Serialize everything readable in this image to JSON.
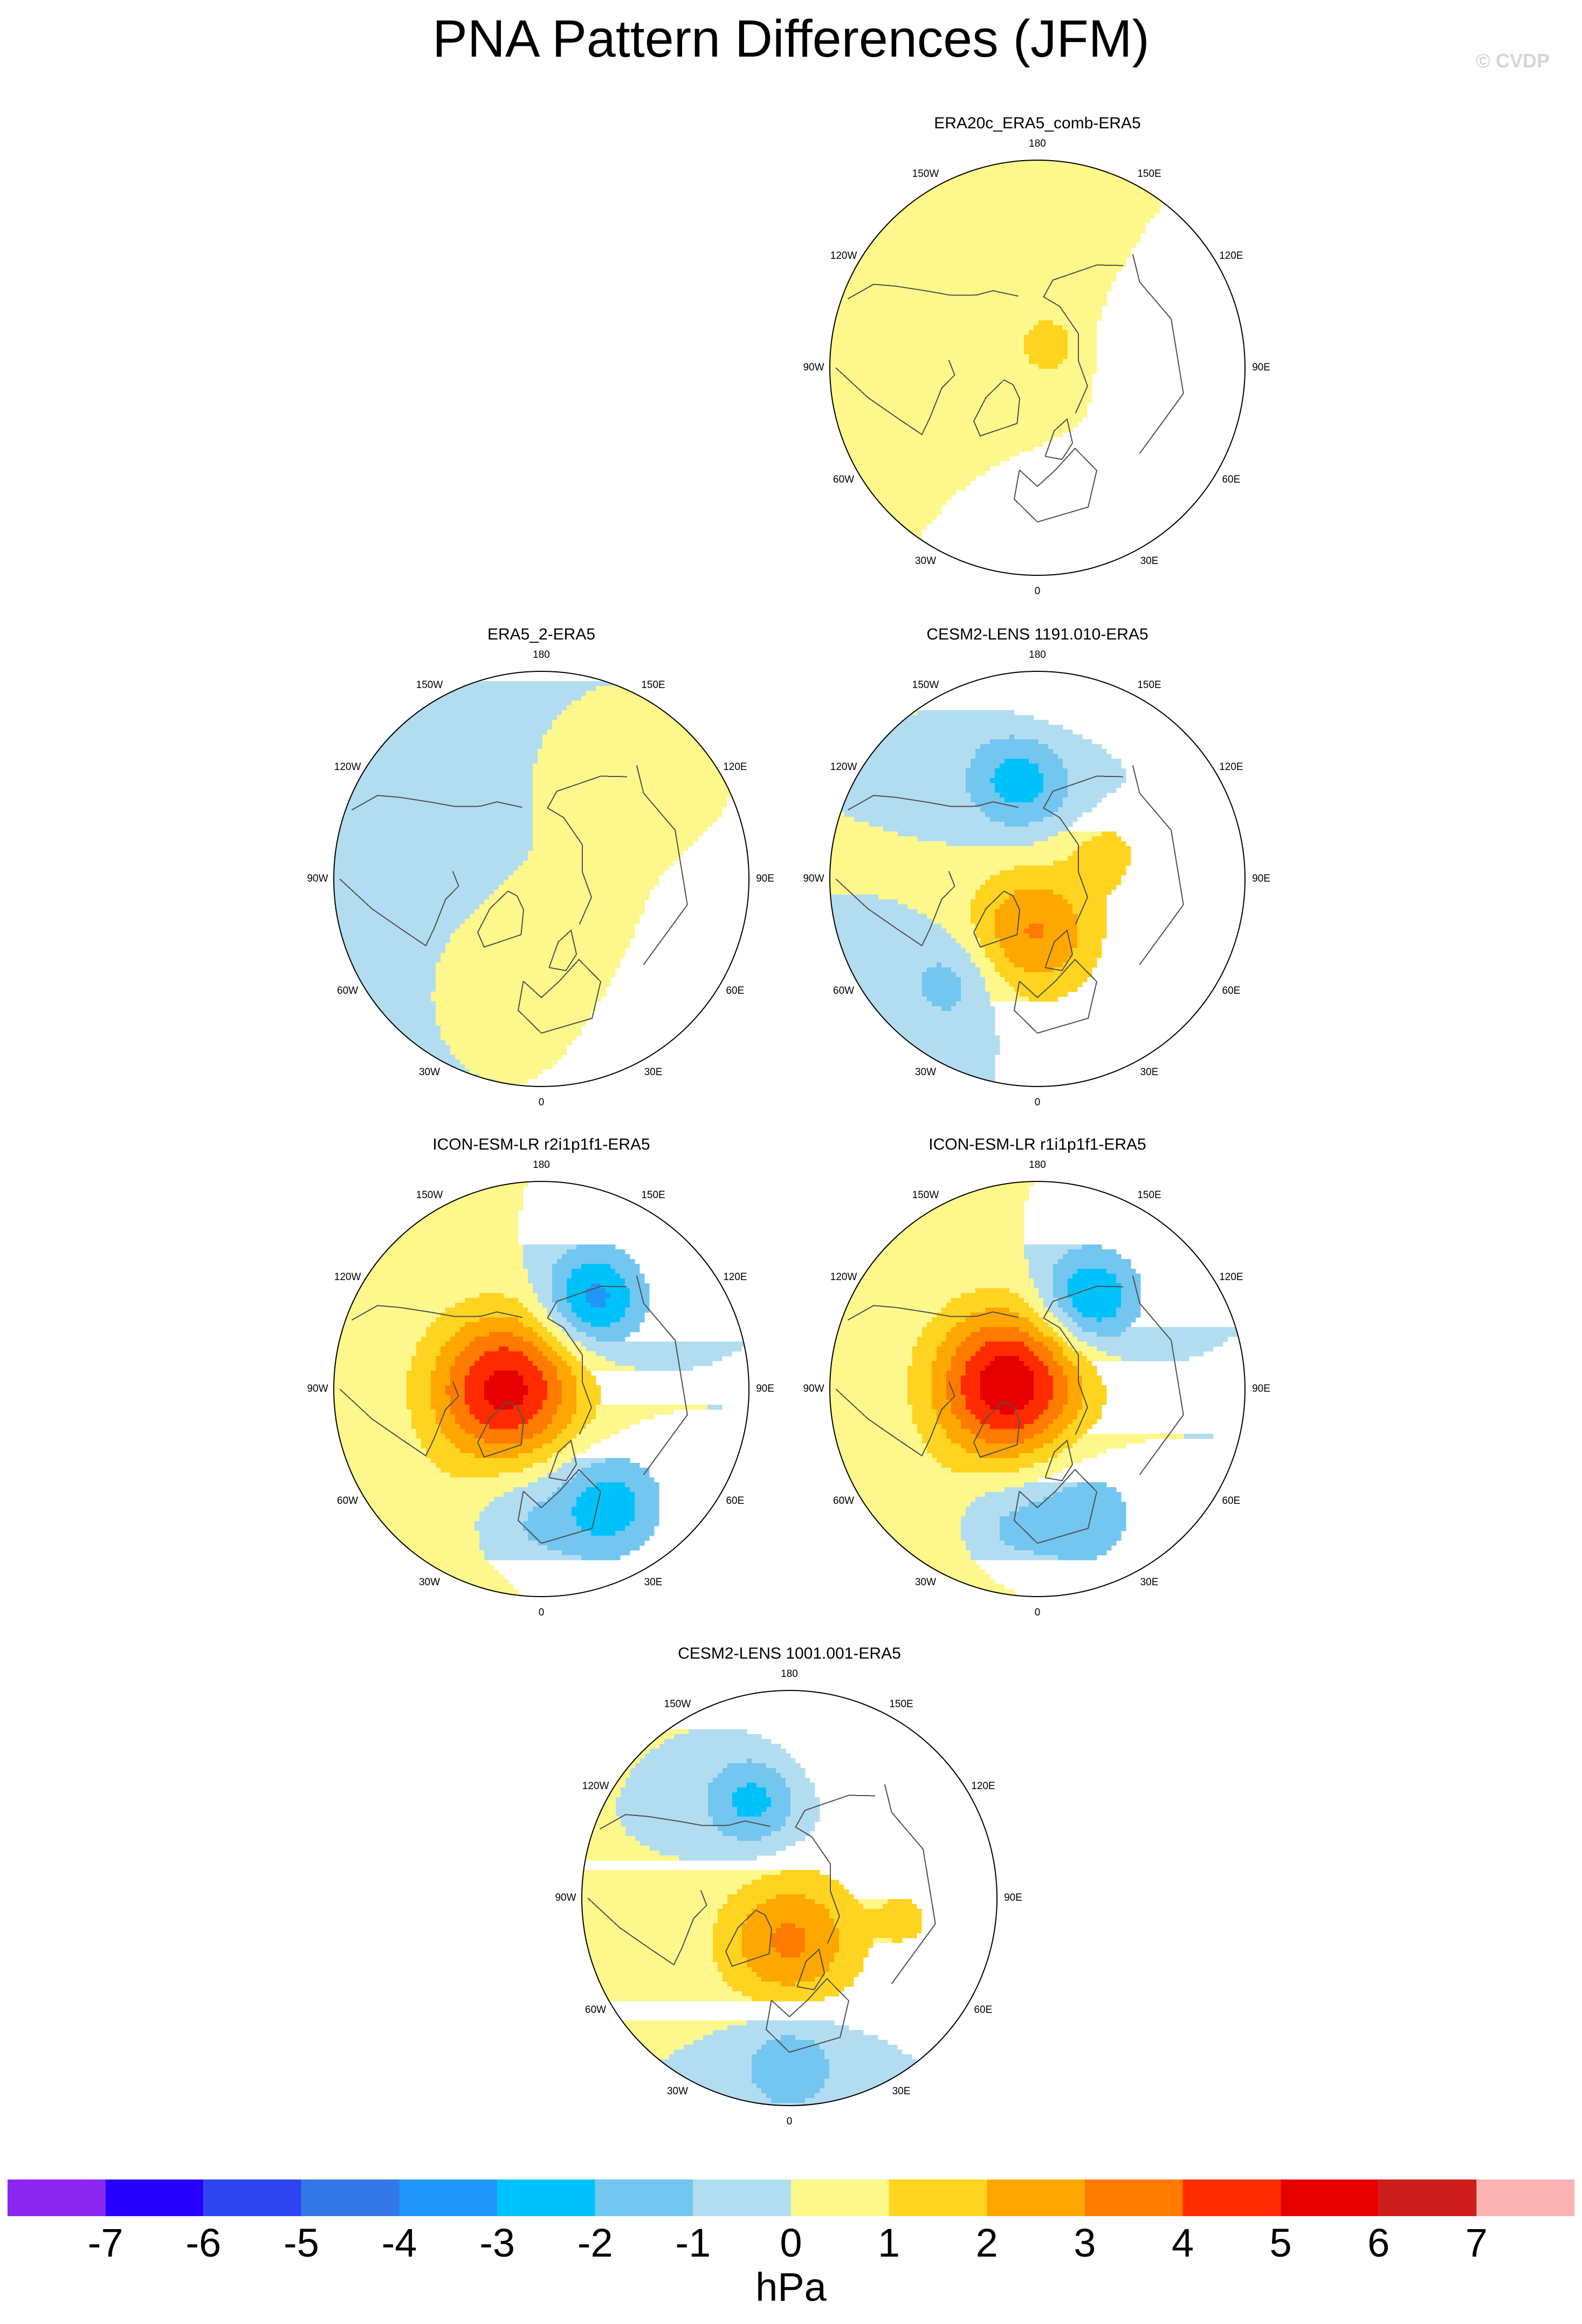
{
  "figure": {
    "title": "PNA Pattern Differences (JFM)",
    "copyright": "© CVDP"
  },
  "lon_labels": [
    "180",
    "150E",
    "120E",
    "90E",
    "60E",
    "30E",
    "0",
    "30W",
    "60W",
    "90W",
    "120W",
    "150W"
  ],
  "chart_data": [
    {
      "type": "filled-contour-polar-map",
      "title": "ERA20c_ERA5_comb-ERA5",
      "units": "hPa",
      "features": [
        {
          "sign": "positive",
          "peak_hPa": 1.6,
          "lon_deg": 150,
          "colat_deg": 8,
          "spread_deg": 6
        },
        {
          "sign": "negative",
          "peak_hPa": -0.5,
          "lon_deg": 0,
          "colat_deg": 55,
          "spread_deg": 25
        },
        {
          "sign": "negative",
          "peak_hPa": -0.5,
          "lon_deg": 110,
          "colat_deg": 42,
          "spread_deg": 22
        },
        {
          "sign": "positive",
          "peak_hPa": 0.5,
          "lon_deg": -100,
          "colat_deg": 30,
          "spread_deg": 40
        },
        {
          "sign": "positive",
          "peak_hPa": 0.5,
          "lon_deg": 180,
          "colat_deg": 42,
          "spread_deg": 20
        }
      ]
    },
    {
      "type": "filled-contour-polar-map",
      "title": "ERA5_2-ERA5",
      "units": "hPa",
      "features": [
        {
          "sign": "positive",
          "peak_hPa": 0.6,
          "lon_deg": 30,
          "colat_deg": 20,
          "spread_deg": 18
        },
        {
          "sign": "positive",
          "peak_hPa": 0.6,
          "lon_deg": -20,
          "colat_deg": 32,
          "spread_deg": 16
        },
        {
          "sign": "positive",
          "peak_hPa": 0.6,
          "lon_deg": 150,
          "colat_deg": 35,
          "spread_deg": 18
        },
        {
          "sign": "negative",
          "peak_hPa": -0.5,
          "lon_deg": -120,
          "colat_deg": 45,
          "spread_deg": 40
        },
        {
          "sign": "negative",
          "peak_hPa": -0.5,
          "lon_deg": 50,
          "colat_deg": 60,
          "spread_deg": 22
        }
      ]
    },
    {
      "type": "filled-contour-polar-map",
      "title": "CESM2-LENS 1191.010-ERA5",
      "units": "hPa",
      "features": [
        {
          "sign": "negative",
          "peak_hPa": -2.8,
          "lon_deg": -170,
          "colat_deg": 35,
          "spread_deg": 13
        },
        {
          "sign": "positive",
          "peak_hPa": 3.1,
          "lon_deg": -5,
          "colat_deg": 18,
          "spread_deg": 16
        },
        {
          "sign": "negative",
          "peak_hPa": -1.6,
          "lon_deg": -40,
          "colat_deg": 45,
          "spread_deg": 12
        },
        {
          "sign": "positive",
          "peak_hPa": 1.3,
          "lon_deg": 110,
          "colat_deg": 25,
          "spread_deg": 9
        },
        {
          "sign": "positive",
          "peak_hPa": 0.8,
          "lon_deg": 180,
          "colat_deg": 55,
          "spread_deg": 15
        }
      ]
    },
    {
      "type": "filled-contour-polar-map",
      "title": "ICON-ESM-LR r2i1p1f1-ERA5",
      "units": "hPa",
      "features": [
        {
          "sign": "positive",
          "peak_hPa": 5.4,
          "lon_deg": -90,
          "colat_deg": 12,
          "spread_deg": 18
        },
        {
          "sign": "negative",
          "peak_hPa": -3.5,
          "lon_deg": 150,
          "colat_deg": 35,
          "spread_deg": 12
        },
        {
          "sign": "negative",
          "peak_hPa": -2.6,
          "lon_deg": 30,
          "colat_deg": 45,
          "spread_deg": 13
        },
        {
          "sign": "negative",
          "peak_hPa": -1.3,
          "lon_deg": -10,
          "colat_deg": 45,
          "spread_deg": 14
        },
        {
          "sign": "positive",
          "peak_hPa": 0.8,
          "lon_deg": -30,
          "colat_deg": 65,
          "spread_deg": 20
        }
      ]
    },
    {
      "type": "filled-contour-polar-map",
      "title": "ICON-ESM-LR r1i1p1f1-ERA5",
      "units": "hPa",
      "features": [
        {
          "sign": "positive",
          "peak_hPa": 5.8,
          "lon_deg": -100,
          "colat_deg": 10,
          "spread_deg": 18
        },
        {
          "sign": "negative",
          "peak_hPa": -3.3,
          "lon_deg": 150,
          "colat_deg": 35,
          "spread_deg": 12
        },
        {
          "sign": "negative",
          "peak_hPa": -1.8,
          "lon_deg": 20,
          "colat_deg": 45,
          "spread_deg": 14
        },
        {
          "sign": "negative",
          "peak_hPa": -1.4,
          "lon_deg": -15,
          "colat_deg": 48,
          "spread_deg": 12
        },
        {
          "sign": "positive",
          "peak_hPa": 0.8,
          "lon_deg": -30,
          "colat_deg": 65,
          "spread_deg": 20
        }
      ]
    },
    {
      "type": "filled-contour-polar-map",
      "title": "CESM2-LENS 1001.001-ERA5",
      "units": "hPa",
      "features": [
        {
          "sign": "negative",
          "peak_hPa": -2.6,
          "lon_deg": -160,
          "colat_deg": 35,
          "spread_deg": 12
        },
        {
          "sign": "positive",
          "peak_hPa": 3.2,
          "lon_deg": 0,
          "colat_deg": 15,
          "spread_deg": 17
        },
        {
          "sign": "negative",
          "peak_hPa": -1.9,
          "lon_deg": 0,
          "colat_deg": 55,
          "spread_deg": 13
        },
        {
          "sign": "positive",
          "peak_hPa": 0.8,
          "lon_deg": 170,
          "colat_deg": 55,
          "spread_deg": 20
        },
        {
          "sign": "positive",
          "peak_hPa": 1.3,
          "lon_deg": 80,
          "colat_deg": 40,
          "spread_deg": 7
        }
      ]
    }
  ],
  "colorbar": {
    "units": "hPa",
    "tick_labels": [
      "-7",
      "-6",
      "-5",
      "-4",
      "-3",
      "-2",
      "-1",
      "0",
      "1",
      "2",
      "3",
      "4",
      "5",
      "6",
      "7"
    ],
    "levels": [
      -7,
      -6,
      -5,
      -4,
      -3,
      -2,
      -1,
      0,
      1,
      2,
      3,
      4,
      5,
      6,
      7
    ],
    "colors": [
      "#8a26f0",
      "#2700fb",
      "#2d44f0",
      "#3478e8",
      "#1f96f8",
      "#00c2fa",
      "#73c6ef",
      "#b2ddf1",
      "#fef78c",
      "#fed421",
      "#fea700",
      "#fe7a00",
      "#fe2b00",
      "#e60000",
      "#cc1d1d",
      "#fcb3b3"
    ]
  },
  "colors": {
    "land_outline": "#505050",
    "map_edge": "#000000"
  }
}
